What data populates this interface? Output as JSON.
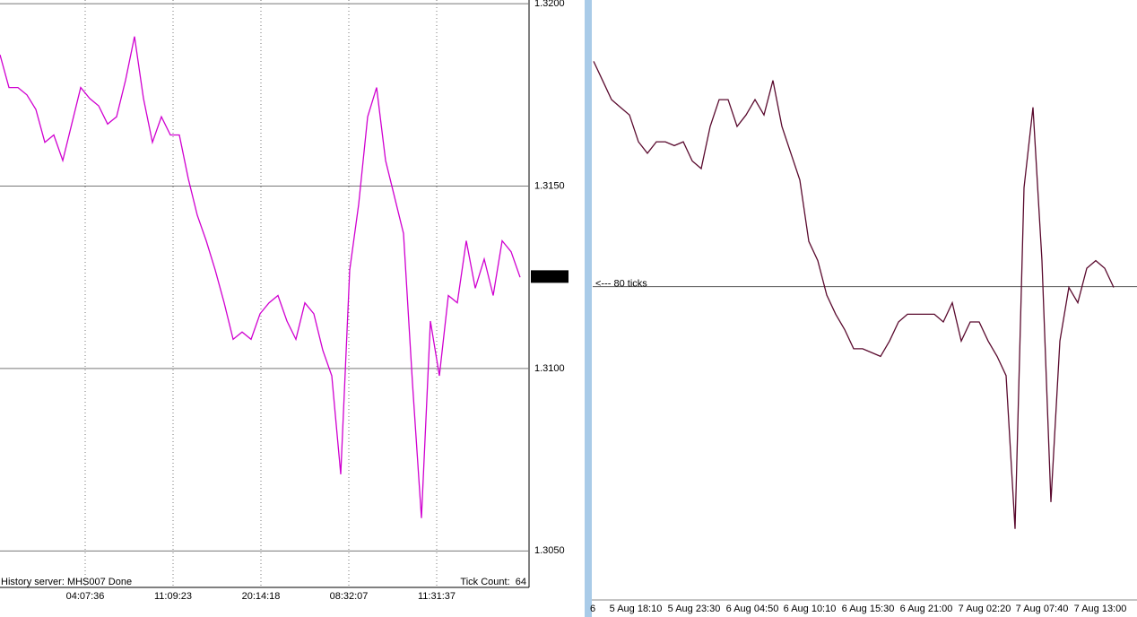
{
  "chart_data": [
    {
      "type": "line",
      "color": "#d000d0",
      "grid": true,
      "ylim": [
        1.304,
        1.3201
      ],
      "yticks": [
        {
          "value": 1.32,
          "label": "1.3200"
        },
        {
          "value": 1.315,
          "label": "1.3150"
        },
        {
          "value": 1.31,
          "label": "1.3100"
        },
        {
          "value": 1.305,
          "label": "1.3050"
        }
      ],
      "xlim": [
        0,
        58
      ],
      "xticks": [
        {
          "value": 9.5,
          "label": "04:07:36"
        },
        {
          "value": 19.3,
          "label": "11:09:23"
        },
        {
          "value": 29.1,
          "label": "20:14:18"
        },
        {
          "value": 38.9,
          "label": "08:32:07"
        },
        {
          "value": 48.7,
          "label": "11:31:37"
        }
      ],
      "last_price": 1.31252,
      "status": "History server: MHS007 Done",
      "tick_count": "Tick Count:  64",
      "values": [
        1.3186,
        1.3177,
        1.3177,
        1.3175,
        1.3171,
        1.3162,
        1.3164,
        1.3157,
        1.3167,
        1.3177,
        1.3174,
        1.3172,
        1.3167,
        1.3169,
        1.3179,
        1.3191,
        1.3174,
        1.3162,
        1.3169,
        1.3164,
        1.3164,
        1.3152,
        1.3142,
        1.3135,
        1.3127,
        1.3118,
        1.3108,
        1.311,
        1.3108,
        1.3115,
        1.3118,
        1.312,
        1.3113,
        1.3108,
        1.3118,
        1.3115,
        1.3105,
        1.3098,
        1.3071,
        1.3127,
        1.3145,
        1.3169,
        1.3177,
        1.3157,
        1.3147,
        1.3137,
        1.3096,
        1.3059,
        1.3113,
        1.3098,
        1.312,
        1.3118,
        1.3135,
        1.3122,
        1.313,
        1.312,
        1.3135,
        1.3132,
        1.3125
      ]
    },
    {
      "type": "line",
      "color": "#5a0a2e",
      "grid": false,
      "ylim": [
        1.3039,
        1.32
      ],
      "xlim": [
        -0.1,
        60.6
      ],
      "xticks": [
        {
          "value": -0.1,
          "label": "6"
        },
        {
          "value": 4.7,
          "label": "5 Aug 18:10"
        },
        {
          "value": 11.2,
          "label": "5 Aug 23:30"
        },
        {
          "value": 17.7,
          "label": "6 Aug 04:50"
        },
        {
          "value": 24.1,
          "label": "6 Aug 10:10"
        },
        {
          "value": 30.6,
          "label": "6 Aug 15:30"
        },
        {
          "value": 37.1,
          "label": "6 Aug 21:00"
        },
        {
          "value": 43.6,
          "label": "7 Aug 02:20"
        },
        {
          "value": 50.0,
          "label": "7 Aug 07:40"
        },
        {
          "value": 56.5,
          "label": "7 Aug 13:00"
        }
      ],
      "hline": 1.31252,
      "annotation": "<--- 80 ticks",
      "values": [
        1.3184,
        1.3179,
        1.3174,
        1.3172,
        1.317,
        1.3163,
        1.316,
        1.3163,
        1.3163,
        1.3162,
        1.3163,
        1.3158,
        1.3156,
        1.3167,
        1.3174,
        1.3174,
        1.3167,
        1.317,
        1.3174,
        1.317,
        1.3179,
        1.3167,
        1.316,
        1.3153,
        1.3137,
        1.3132,
        1.3123,
        1.3118,
        1.3114,
        1.3109,
        1.3109,
        1.3108,
        1.3107,
        1.3111,
        1.3116,
        1.3118,
        1.3118,
        1.3118,
        1.3118,
        1.3116,
        1.3121,
        1.3111,
        1.3116,
        1.3116,
        1.3111,
        1.3107,
        1.3102,
        1.3062,
        1.3151,
        1.3172,
        1.3132,
        1.3069,
        1.3111,
        1.3125,
        1.3121,
        1.313,
        1.3132,
        1.313,
        1.3125
      ]
    }
  ]
}
